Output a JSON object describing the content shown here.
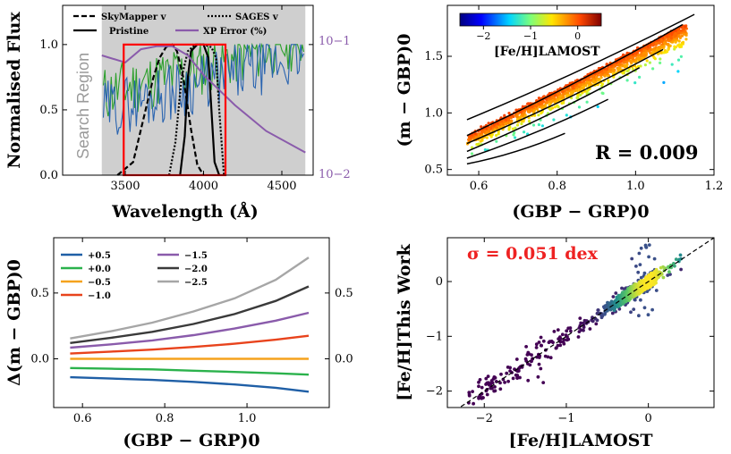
{
  "chart_data": [
    {
      "type": "line",
      "title": "",
      "xlabel": "Wavelength (Å)",
      "ylabel": "Normalised Flux",
      "y2label_ticks": [
        "10−2",
        "10−1"
      ],
      "xlim": [
        3100,
        4700
      ],
      "ylim": [
        0,
        1.3
      ],
      "x_ticks": [
        "3500",
        "4000",
        "4500"
      ],
      "y_ticks": [
        "0.0",
        "0.5",
        "1.0"
      ],
      "shaded_region_label": "Search Region",
      "shaded_region": [
        3350,
        4650
      ],
      "search_box": [
        3490,
        4140
      ],
      "legend": [
        {
          "name": "SkyMapper v",
          "style": "dashed"
        },
        {
          "name": "SAGES v",
          "style": "dotted"
        },
        {
          "name": "Pristine",
          "style": "solid"
        },
        {
          "name": "XP Error (%)",
          "style": "solid",
          "color": "#8a5bab"
        }
      ],
      "series": [
        {
          "name": "SkyMapper v",
          "x": [
            3450,
            3550,
            3620,
            3680,
            3720,
            3760,
            3800,
            3830,
            3870,
            3920,
            3960,
            4000
          ],
          "values": [
            0,
            0.1,
            0.45,
            0.75,
            0.9,
            0.98,
            1.0,
            0.95,
            0.75,
            0.35,
            0.08,
            0
          ]
        },
        {
          "name": "SAGES v",
          "x": [
            3780,
            3820,
            3860,
            3900,
            3950,
            4000,
            4050,
            4080,
            4100,
            4130
          ],
          "values": [
            0,
            0.25,
            0.75,
            0.95,
            1.0,
            1.0,
            0.98,
            0.9,
            0.5,
            0
          ]
        },
        {
          "name": "Pristine",
          "x": [
            3850,
            3880,
            3900,
            3920,
            3960,
            4000,
            4030,
            4050,
            4070,
            4100
          ],
          "values": [
            0,
            0.3,
            0.75,
            0.95,
            1.0,
            1.0,
            0.9,
            0.5,
            0.1,
            0
          ]
        },
        {
          "name": "XP Error (%)",
          "x": [
            3350,
            3500,
            3600,
            3700,
            3800,
            3900,
            4000,
            4200,
            4400,
            4650
          ],
          "values": [
            0.085,
            0.075,
            0.095,
            0.1,
            0.1,
            0.085,
            0.06,
            0.035,
            0.022,
            0.015
          ]
        }
      ]
    },
    {
      "type": "scatter",
      "xlabel": "(GBP − GRP)0",
      "ylabel": "(m − GBP)0",
      "xlim": [
        0.52,
        1.2
      ],
      "ylim": [
        0.45,
        1.95
      ],
      "x_ticks": [
        "0.6",
        "0.8",
        "1.0",
        "1.2"
      ],
      "y_ticks": [
        "0.5",
        "1.0",
        "1.5"
      ],
      "colorbar_label": "[Fe/H]LAMOST",
      "colorbar_ticks": [
        "−2",
        "−1",
        "0"
      ],
      "colorbar_range": [
        -2.5,
        0.5
      ],
      "annotation": "R = 0.009",
      "model_lines": [
        {
          "feh": 0.5,
          "x0": 0.57,
          "y0": 0.94,
          "x1": 1.15,
          "y1": 1.87
        },
        {
          "feh": 0.0,
          "x0": 0.57,
          "y0": 0.8,
          "x1": 1.12,
          "y1": 1.78
        },
        {
          "feh": -0.5,
          "x0": 0.57,
          "y0": 0.73,
          "x1": 1.07,
          "y1": 1.56
        },
        {
          "feh": -1.0,
          "x0": 0.57,
          "y0": 0.66,
          "x1": 1.01,
          "y1": 1.4
        },
        {
          "feh": -1.5,
          "x0": 0.57,
          "y0": 0.6,
          "x1": 0.93,
          "y1": 1.12
        },
        {
          "feh": -2.0,
          "x0": 0.57,
          "y0": 0.55,
          "x1": 0.82,
          "y1": 0.82
        }
      ]
    },
    {
      "type": "line",
      "xlabel": "(GBP − GRP)0",
      "ylabel": "Δ(m − GBP)0",
      "xlim": [
        0.53,
        1.2
      ],
      "ylim": [
        -0.37,
        0.92
      ],
      "x_ticks": [
        "0.6",
        "0.8",
        "1.0"
      ],
      "y_ticks": [
        "0.0",
        "0.5"
      ],
      "y2_ticks": [
        "0.0",
        "0.5"
      ],
      "x": [
        0.57,
        0.67,
        0.77,
        0.87,
        0.97,
        1.07,
        1.15
      ],
      "series": [
        {
          "name": "+0.5",
          "color": "#1f5fa6",
          "values": [
            -0.14,
            -0.15,
            -0.16,
            -0.175,
            -0.195,
            -0.22,
            -0.25
          ]
        },
        {
          "name": "+0.0",
          "color": "#2bb24c",
          "values": [
            -0.07,
            -0.075,
            -0.08,
            -0.09,
            -0.1,
            -0.11,
            -0.12
          ]
        },
        {
          "name": "−0.5",
          "color": "#f5a21d",
          "values": [
            0,
            0,
            0,
            0,
            0,
            0,
            0
          ]
        },
        {
          "name": "−1.0",
          "color": "#e8431c",
          "values": [
            0.04,
            0.055,
            0.07,
            0.09,
            0.115,
            0.145,
            0.175
          ]
        },
        {
          "name": "−1.5",
          "color": "#8a5bab",
          "values": [
            0.085,
            0.11,
            0.14,
            0.18,
            0.23,
            0.29,
            0.35
          ]
        },
        {
          "name": "−2.0",
          "color": "#3a3a3a",
          "values": [
            0.12,
            0.16,
            0.205,
            0.265,
            0.34,
            0.44,
            0.55
          ]
        },
        {
          "name": "−2.5",
          "color": "#a6a6a6",
          "values": [
            0.155,
            0.21,
            0.275,
            0.36,
            0.46,
            0.6,
            0.77
          ]
        }
      ]
    },
    {
      "type": "scatter",
      "xlabel": "[Fe/H]LAMOST",
      "ylabel": "[Fe/H]This Work",
      "xlim": [
        -2.45,
        0.8
      ],
      "ylim": [
        -2.3,
        0.8
      ],
      "x_ticks": [
        "−2",
        "−1",
        "0"
      ],
      "y_ticks": [
        "−2",
        "−1",
        "0"
      ],
      "annotation": "σ = 0.051 dex",
      "one_to_one_line": true
    }
  ]
}
